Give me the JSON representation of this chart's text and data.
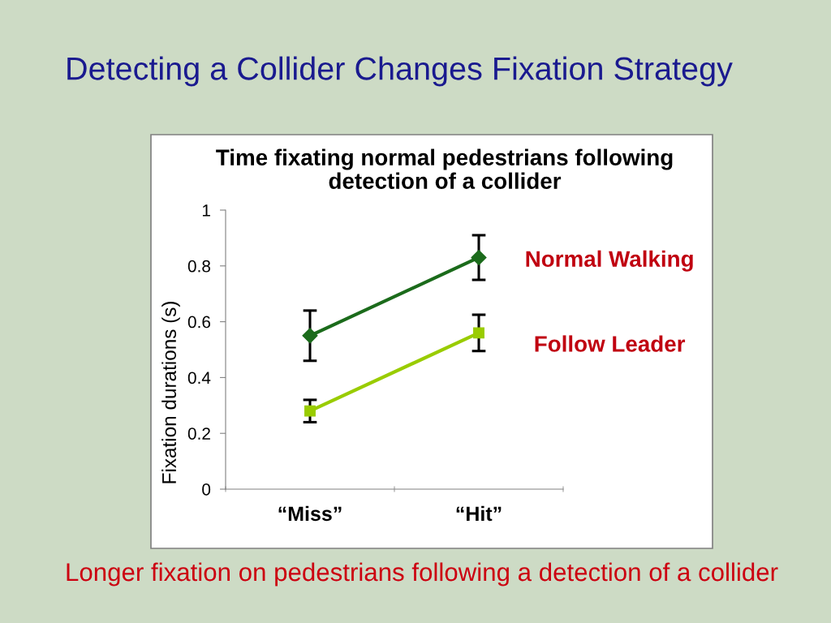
{
  "chart_data": {
    "type": "line",
    "title": "Detecting a Collider Changes Fixation Strategy",
    "subtitle": "Time fixating normal pedestrians following\ndetection of a collider",
    "ylabel": "Fixation durations (s)",
    "categories": [
      "“Miss”",
      "“Hit”"
    ],
    "series": [
      {
        "name": "Normal Walking",
        "color": "#1b6b1b",
        "marker": "diamond",
        "values": [
          0.55,
          0.83
        ],
        "errors": [
          0.09,
          0.08
        ]
      },
      {
        "name": "Follow Leader",
        "color": "#99cc00",
        "marker": "square",
        "values": [
          0.28,
          0.56
        ],
        "errors": [
          0.04,
          0.065
        ]
      }
    ],
    "ylim": [
      0,
      1
    ],
    "yticks": [
      0,
      0.2,
      0.4,
      0.6,
      0.8,
      1
    ],
    "annotations": [
      "Longer fixation on pedestrians following a detection of a collider"
    ]
  }
}
